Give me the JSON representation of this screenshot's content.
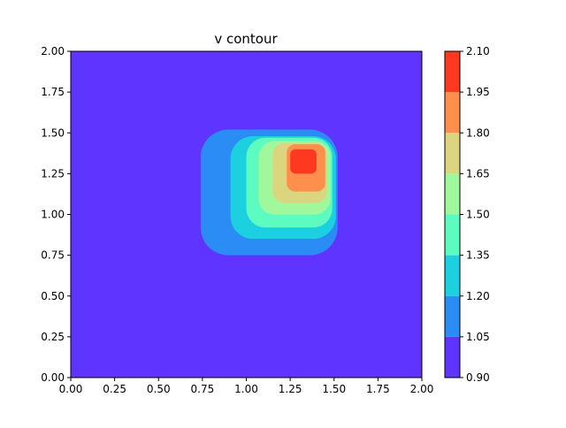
{
  "chart_data": {
    "type": "heatmap",
    "subtype": "filled-contour",
    "title": "v contour",
    "xlabel": "",
    "ylabel": "",
    "xlim": [
      0,
      2
    ],
    "ylim": [
      0,
      2
    ],
    "x_ticks": [
      "0.00",
      "0.25",
      "0.50",
      "0.75",
      "1.00",
      "1.25",
      "1.50",
      "1.75",
      "2.00"
    ],
    "y_ticks": [
      "0.00",
      "0.25",
      "0.50",
      "0.75",
      "1.00",
      "1.25",
      "1.50",
      "1.75",
      "2.00"
    ],
    "colorbar": {
      "levels": [
        0.9,
        1.05,
        1.2,
        1.35,
        1.5,
        1.65,
        1.8,
        1.95,
        2.1
      ],
      "tick_labels": [
        "0.90",
        "1.05",
        "1.20",
        "1.35",
        "1.50",
        "1.65",
        "1.80",
        "1.95",
        "2.10"
      ],
      "colors": [
        "#6034ff",
        "#2a8cf4",
        "#1cd0e0",
        "#5cfbc0",
        "#a0f89c",
        "#dcd580",
        "#ff8f4c",
        "#ff3820"
      ]
    },
    "colormap": "rainbow",
    "grid": false,
    "regions": [
      {
        "level_index": 1,
        "value_range": [
          1.05,
          1.2
        ],
        "x_range": [
          0.74,
          1.52
        ],
        "y_range": [
          0.75,
          1.52
        ]
      },
      {
        "level_index": 2,
        "value_range": [
          1.2,
          1.35
        ],
        "x_range": [
          0.91,
          1.51
        ],
        "y_range": [
          0.85,
          1.48
        ]
      },
      {
        "level_index": 3,
        "value_range": [
          1.35,
          1.5
        ],
        "x_range": [
          1.0,
          1.49
        ],
        "y_range": [
          0.92,
          1.47
        ]
      },
      {
        "level_index": 4,
        "value_range": [
          1.5,
          1.65
        ],
        "x_range": [
          1.07,
          1.48
        ],
        "y_range": [
          1.0,
          1.45
        ]
      },
      {
        "level_index": 5,
        "value_range": [
          1.65,
          1.8
        ],
        "x_range": [
          1.15,
          1.46
        ],
        "y_range": [
          1.07,
          1.44
        ]
      },
      {
        "level_index": 6,
        "value_range": [
          1.8,
          1.95
        ],
        "x_range": [
          1.23,
          1.45
        ],
        "y_range": [
          1.14,
          1.43
        ]
      },
      {
        "level_index": 7,
        "value_range": [
          1.95,
          2.1
        ],
        "x_range": [
          1.25,
          1.4
        ],
        "y_range": [
          1.25,
          1.4
        ]
      }
    ]
  }
}
